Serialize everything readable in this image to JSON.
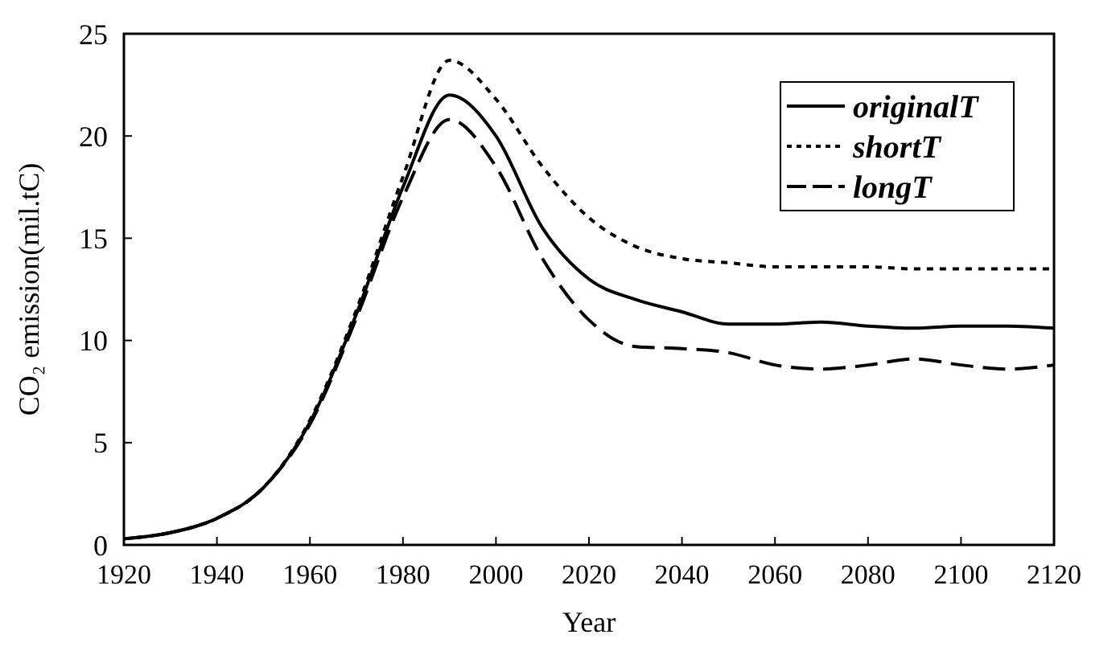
{
  "chart_data": {
    "type": "line",
    "xlabel": "Year",
    "ylabel": "CO₂ emission(mil.tC)",
    "x": [
      1920,
      1930,
      1940,
      1950,
      1960,
      1970,
      1980,
      1990,
      2000,
      2010,
      2020,
      2030,
      2040,
      2050,
      2060,
      2070,
      2080,
      2090,
      2100,
      2110,
      2120
    ],
    "series": [
      {
        "name": "originalT",
        "color": "#000000",
        "line_style": "solid",
        "values": [
          0.3,
          0.6,
          1.3,
          2.8,
          6.0,
          11.3,
          17.5,
          22.0,
          20.0,
          15.5,
          13.0,
          12.0,
          11.4,
          10.8,
          10.8,
          10.9,
          10.7,
          10.6,
          10.7,
          10.7,
          10.6
        ]
      },
      {
        "name": "shortT",
        "color": "#000000",
        "line_style": "dotted",
        "values": [
          0.3,
          0.6,
          1.3,
          2.8,
          6.1,
          11.5,
          18.0,
          23.7,
          21.8,
          18.5,
          16.0,
          14.6,
          14.0,
          13.8,
          13.6,
          13.6,
          13.6,
          13.5,
          13.5,
          13.5,
          13.5
        ]
      },
      {
        "name": "longT",
        "color": "#000000",
        "line_style": "dashed",
        "values": [
          0.3,
          0.6,
          1.3,
          2.8,
          5.9,
          11.1,
          17.0,
          20.8,
          18.5,
          14.0,
          11.0,
          9.7,
          9.6,
          9.4,
          8.8,
          8.6,
          8.8,
          9.1,
          8.8,
          8.6,
          8.8
        ]
      }
    ],
    "xlim": [
      1920,
      2120
    ],
    "xticks": [
      1920,
      1940,
      1960,
      1980,
      2000,
      2020,
      2040,
      2060,
      2080,
      2100,
      2120
    ],
    "ylim": [
      0,
      25
    ],
    "yticks": [
      0,
      5,
      10,
      15,
      20,
      25
    ],
    "grid": false,
    "legend": "top right"
  }
}
